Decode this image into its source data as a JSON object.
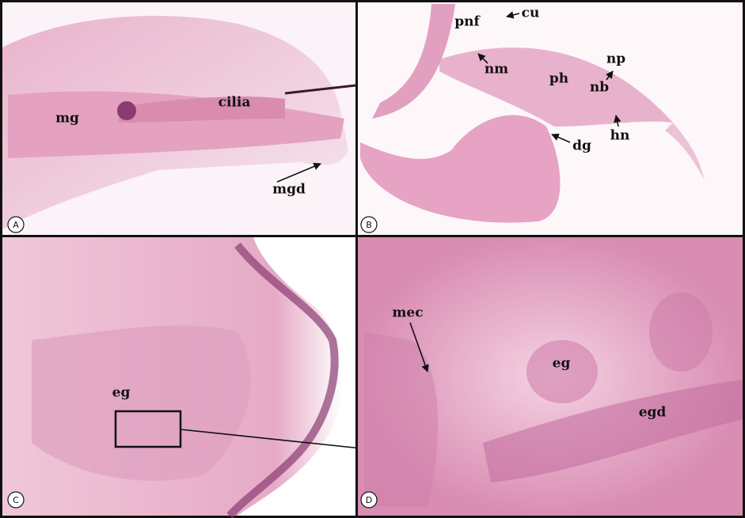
{
  "panels": [
    {
      "letter": "A",
      "labels": [
        "mg",
        "cilia",
        "mgd"
      ]
    },
    {
      "letter": "B",
      "labels": [
        "pnf",
        "cu",
        "nm",
        "ph",
        "nb",
        "np",
        "hn",
        "dg"
      ]
    },
    {
      "letter": "C",
      "labels": [
        "eg"
      ]
    },
    {
      "letter": "D",
      "labels": [
        "mec",
        "eg",
        "egd"
      ]
    }
  ]
}
